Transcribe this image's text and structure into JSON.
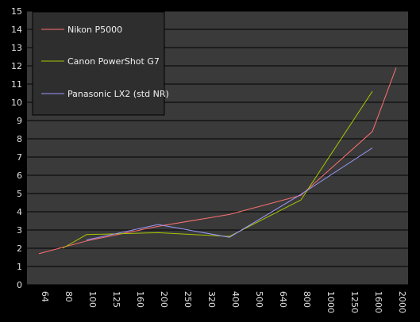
{
  "chart_data": {
    "type": "line",
    "categories": [
      "64",
      "80",
      "100",
      "125",
      "160",
      "200",
      "250",
      "320",
      "400",
      "500",
      "640",
      "800",
      "1000",
      "1250",
      "1600",
      "2000"
    ],
    "yticks": [
      "0",
      "1",
      "2",
      "3",
      "4",
      "5",
      "6",
      "7",
      "8",
      "9",
      "10",
      "11",
      "12",
      "13",
      "14",
      "15"
    ],
    "ylim": [
      0,
      15
    ],
    "grid": true,
    "legend_position": "top-left",
    "colors": {
      "background": "#000000",
      "plot_area": "#3a3a3a",
      "grid": "#000000",
      "tick_text": "#e0e0e0",
      "legend_box": "#2e2e2e",
      "legend_text": "#f0f0f0"
    },
    "series": [
      {
        "name": "Nikon P5000",
        "color": "#ff7070",
        "values": [
          1.7,
          null,
          2.4,
          null,
          null,
          3.2,
          null,
          null,
          3.85,
          null,
          null,
          4.9,
          null,
          null,
          8.4,
          11.9
        ]
      },
      {
        "name": "Canon PowerShot G7",
        "color": "#a8c400",
        "values": [
          null,
          2.0,
          2.75,
          null,
          null,
          2.85,
          null,
          null,
          2.65,
          null,
          null,
          4.65,
          null,
          null,
          10.6,
          null
        ]
      },
      {
        "name": "Panasonic LX2 (std NR)",
        "color": "#9a9aff",
        "values": [
          null,
          null,
          2.45,
          null,
          null,
          3.3,
          null,
          null,
          2.6,
          null,
          null,
          4.95,
          null,
          null,
          7.5,
          null
        ]
      }
    ]
  }
}
